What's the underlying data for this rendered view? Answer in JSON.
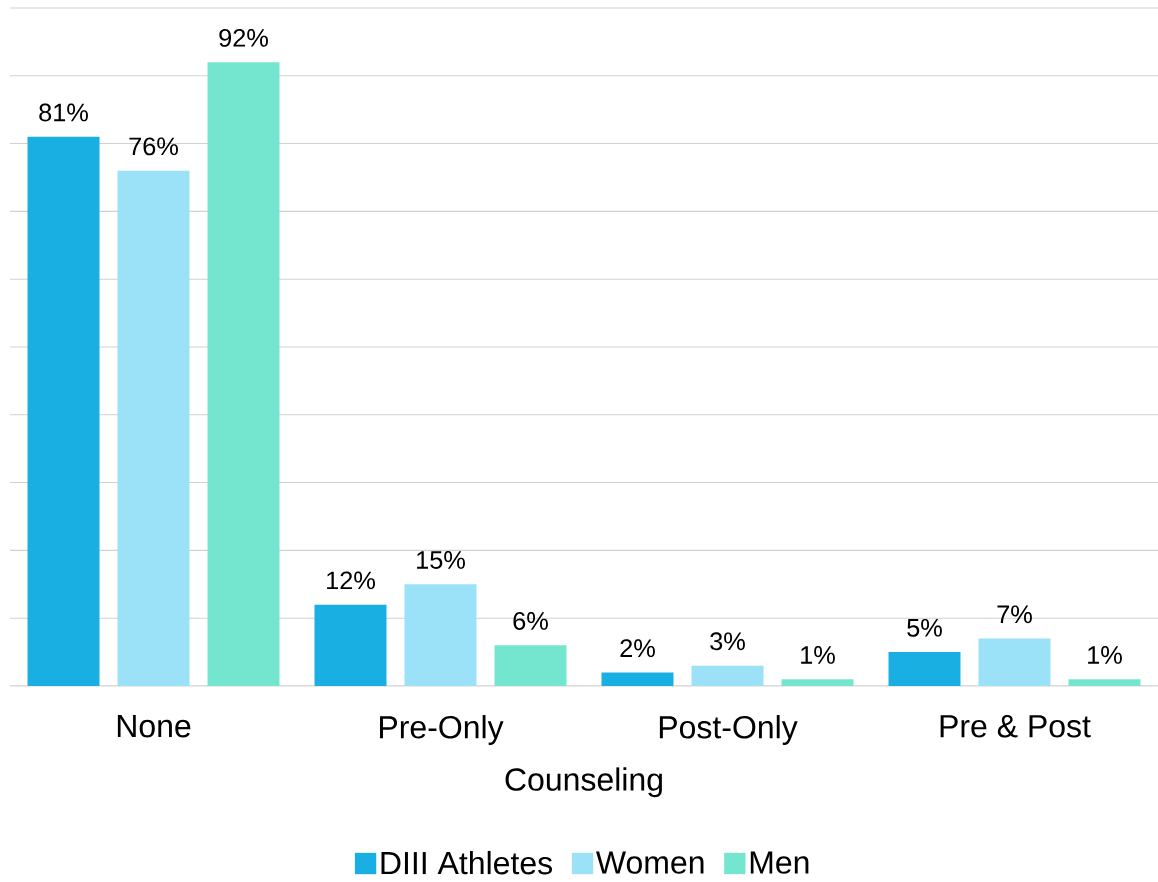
{
  "chart_data": {
    "type": "bar",
    "xlabel": "Counseling",
    "categories": [
      "None",
      "Pre-Only",
      "Post-Only",
      "Pre & Post"
    ],
    "series": [
      {
        "name": "DIII Athletes",
        "color": "#1aafe3",
        "values": [
          81,
          12,
          2,
          5
        ],
        "value_labels": [
          "81%",
          "12%",
          "2%",
          "5%"
        ]
      },
      {
        "name": "Women",
        "color": "#9be1f8",
        "values": [
          76,
          15,
          3,
          7
        ],
        "value_labels": [
          "76%",
          "15%",
          "3%",
          "7%"
        ]
      },
      {
        "name": "Men",
        "color": "#74e6cf",
        "values": [
          92,
          6,
          1,
          1
        ],
        "value_labels": [
          "92%",
          "6%",
          "1%",
          "1%"
        ]
      }
    ],
    "ylim": [
      0,
      100
    ],
    "yticks": [
      {
        "value": 0,
        "label": null
      },
      {
        "value": 10,
        "label": null
      },
      {
        "value": 20,
        "label": null
      },
      {
        "value": 30,
        "label": null
      },
      {
        "value": 40,
        "label": null
      },
      {
        "value": 50,
        "label": null
      },
      {
        "value": 60,
        "label": null
      },
      {
        "value": 70,
        "label": null
      },
      {
        "value": 80,
        "label": null
      },
      {
        "value": 90,
        "label": null
      },
      {
        "value": 100,
        "label": null
      }
    ],
    "grid": "y",
    "legend": "bottom",
    "tick_labels": "x"
  }
}
